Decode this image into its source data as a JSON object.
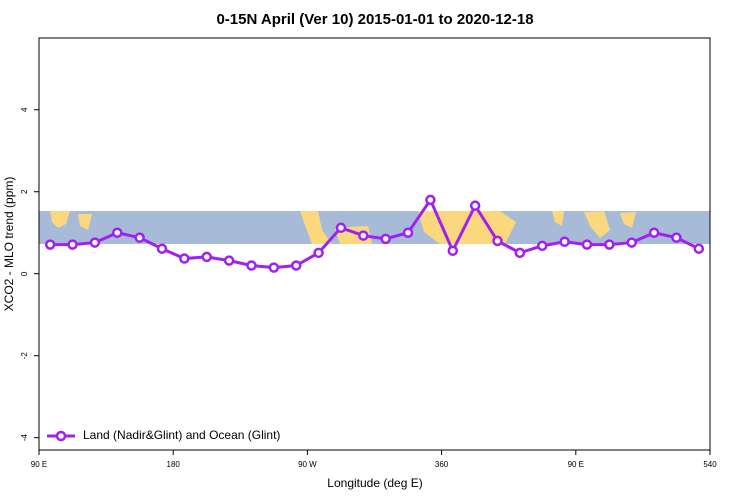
{
  "chart_data": {
    "type": "line",
    "title": "0-15N April (Ver 10)   2015-01-01 to 2020-12-18",
    "x_label": "Longitude (deg E)",
    "y_label": "XCO2 - MLO trend (ppm)",
    "x": [
      97.5,
      112.5,
      127.5,
      142.5,
      157.5,
      172.5,
      187.5,
      202.5,
      217.5,
      232.5,
      247.5,
      262.5,
      277.5,
      292.5,
      307.5,
      322.5,
      337.5,
      352.5,
      367.5,
      382.5,
      397.5,
      412.5,
      427.5,
      442.5,
      457.5,
      472.5,
      487.5,
      502.5,
      517.5,
      532.5
    ],
    "series": [
      {
        "name": "Land (Nadir&Glint) and Ocean (Glint)",
        "color": "#a020f0",
        "values": [
          0.71,
          0.71,
          0.76,
          1.0,
          0.88,
          0.61,
          0.37,
          0.41,
          0.32,
          0.2,
          0.15,
          0.2,
          0.51,
          1.12,
          0.93,
          0.85,
          1.0,
          1.8,
          0.56,
          1.66,
          0.8,
          0.51,
          0.68,
          0.78,
          0.71,
          0.71,
          0.76,
          1.0,
          0.88,
          0.61
        ]
      }
    ],
    "xlim": [
      90,
      540
    ],
    "xticks": [
      {
        "value": 90,
        "label": "90 E"
      },
      180,
      {
        "value": 270,
        "label": "90 W"
      },
      360,
      {
        "value": 450,
        "label": "90 E"
      },
      540
    ],
    "ylim": [
      -4.3,
      5.75
    ],
    "yticks": [
      -4,
      -2,
      0,
      2,
      4
    ],
    "legend": "bottom-left"
  }
}
